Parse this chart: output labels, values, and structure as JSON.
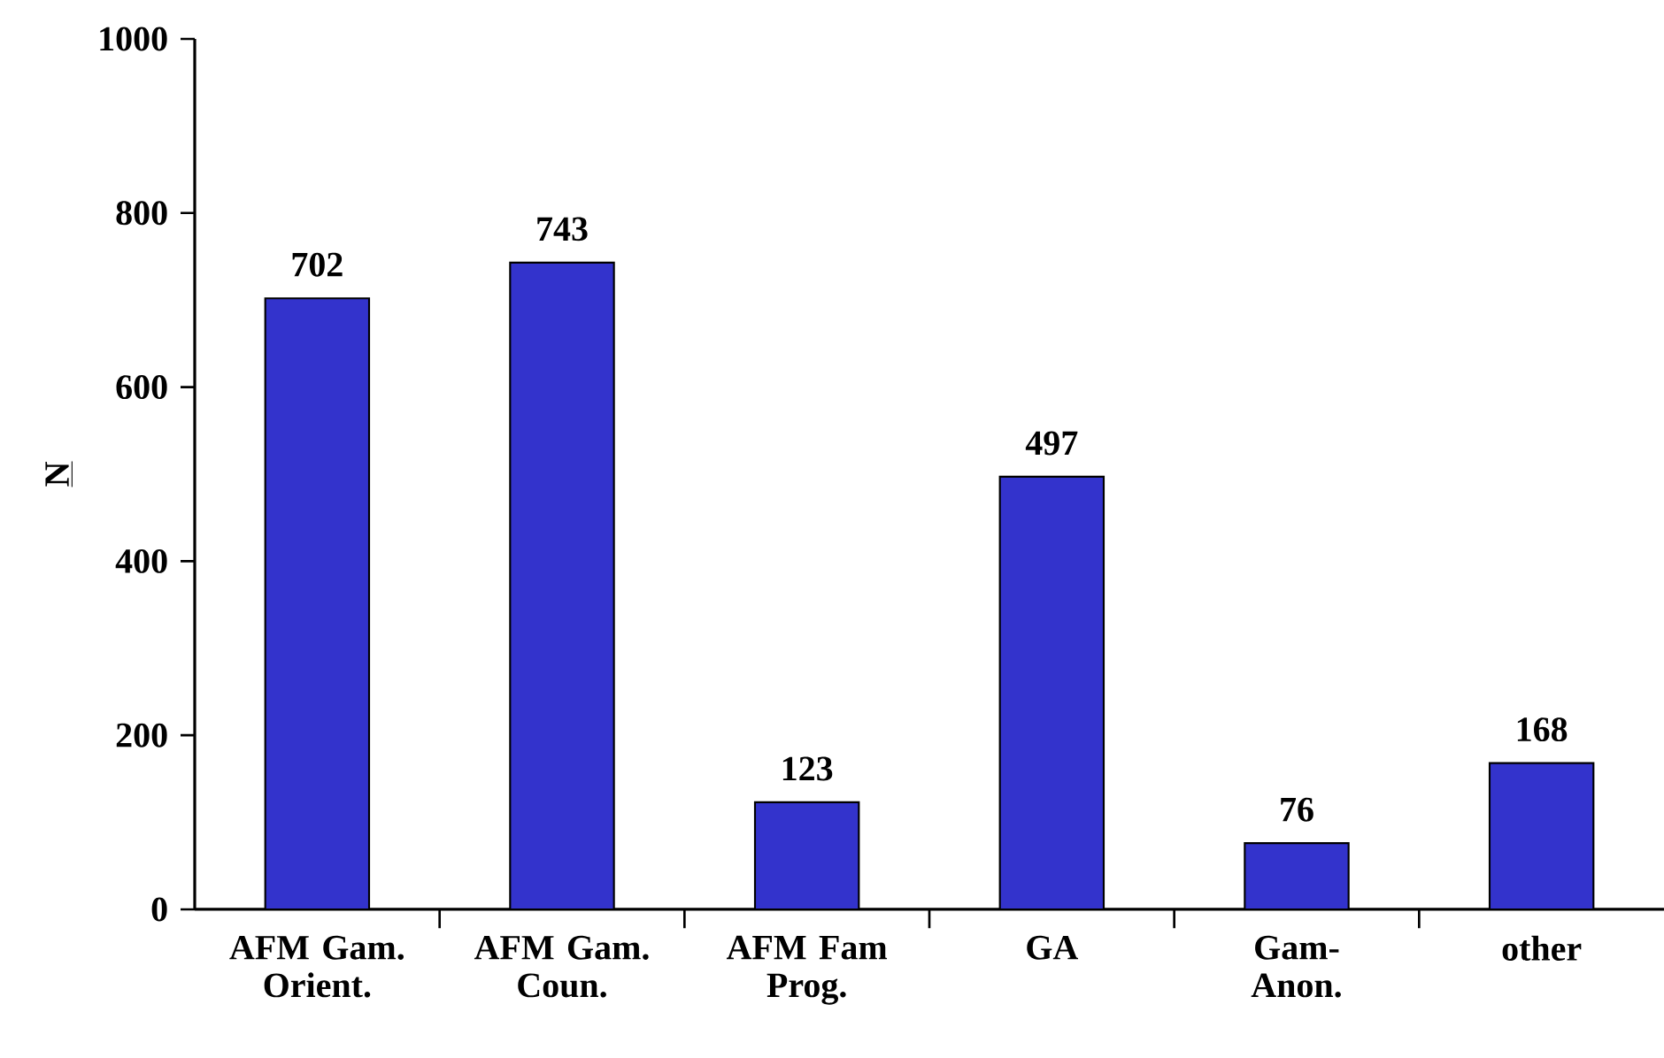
{
  "chart_data": {
    "type": "bar",
    "ylabel": "N",
    "categories": [
      "AFM Gam. Orient.",
      "AFM Gam. Coun.",
      "AFM Fam Prog.",
      "GA",
      "Gam- Anon.",
      "other"
    ],
    "values": [
      702,
      743,
      123,
      497,
      76,
      168
    ],
    "color": "#3333cc",
    "ylim": [
      0,
      1000
    ],
    "yticks": [
      0,
      200,
      400,
      600,
      800,
      1000
    ],
    "data_labels": true
  }
}
